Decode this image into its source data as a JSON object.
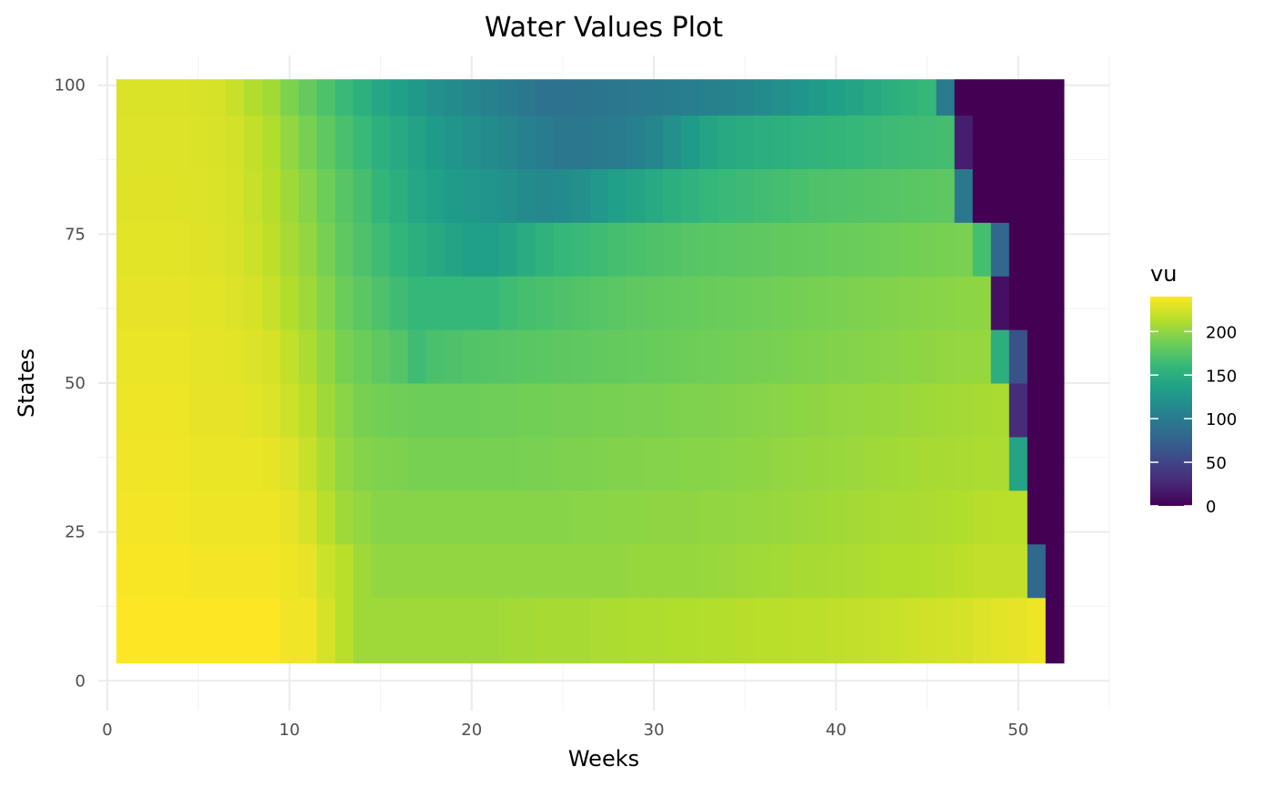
{
  "chart_data": {
    "type": "heatmap",
    "title": "Water Values Plot",
    "xlabel": "Weeks",
    "ylabel": "States",
    "xlim": [
      -0.5,
      55
    ],
    "ylim": [
      -5,
      105
    ],
    "x_range": [
      1,
      52
    ],
    "x_ticks": [
      0,
      10,
      20,
      30,
      40,
      50
    ],
    "x_tick_labels": [
      "0",
      "10",
      "20",
      "30",
      "40",
      "50"
    ],
    "y_ticks": [
      0,
      25,
      50,
      75,
      100
    ],
    "y_tick_labels": [
      "0",
      "25",
      "50",
      "75",
      "100"
    ],
    "state_bands": [
      {
        "y0": 3,
        "y1": 14
      },
      {
        "y0": 14,
        "y1": 23
      },
      {
        "y0": 23,
        "y1": 32
      },
      {
        "y0": 32,
        "y1": 41
      },
      {
        "y0": 41,
        "y1": 50
      },
      {
        "y0": 50,
        "y1": 59
      },
      {
        "y0": 59,
        "y1": 68
      },
      {
        "y0": 68,
        "y1": 77
      },
      {
        "y0": 77,
        "y1": 86
      },
      {
        "y0": 86,
        "y1": 95
      },
      {
        "y0": 95,
        "y1": 101
      }
    ],
    "values": [
      [
        240,
        240,
        240,
        240,
        240,
        240,
        240,
        240,
        240,
        235,
        235,
        225,
        215,
        205,
        205,
        205,
        205,
        205,
        205,
        205,
        205,
        207,
        207,
        208,
        208,
        208,
        210,
        210,
        211,
        211,
        212,
        212,
        213,
        213,
        214,
        215,
        215,
        216,
        216,
        217,
        218,
        219,
        220,
        222,
        223,
        224,
        225,
        228,
        230,
        232,
        234,
        0
      ],
      [
        238,
        238,
        238,
        238,
        236,
        236,
        236,
        236,
        236,
        234,
        232,
        222,
        215,
        205,
        200,
        200,
        200,
        200,
        200,
        200,
        200,
        200,
        200,
        200,
        200,
        200,
        200,
        200,
        202,
        202,
        202,
        202,
        203,
        204,
        205,
        206,
        207,
        208,
        208,
        209,
        210,
        211,
        212,
        212,
        213,
        214,
        216,
        218,
        218,
        218,
        80,
        0
      ],
      [
        236,
        236,
        236,
        236,
        234,
        234,
        234,
        234,
        234,
        232,
        225,
        215,
        205,
        200,
        196,
        196,
        196,
        196,
        196,
        196,
        196,
        196,
        196,
        196,
        196,
        197,
        197,
        198,
        198,
        199,
        199,
        199,
        200,
        200,
        201,
        202,
        203,
        204,
        205,
        206,
        207,
        208,
        209,
        209,
        210,
        211,
        212,
        214,
        215,
        215,
        0,
        0
      ],
      [
        235,
        235,
        235,
        235,
        233,
        233,
        233,
        233,
        232,
        228,
        220,
        210,
        200,
        195,
        193,
        192,
        190,
        190,
        190,
        190,
        190,
        190,
        191,
        191,
        192,
        192,
        193,
        194,
        194,
        195,
        195,
        196,
        196,
        197,
        198,
        199,
        200,
        201,
        202,
        203,
        204,
        205,
        206,
        207,
        208,
        208,
        209,
        210,
        210,
        140,
        0,
        0
      ],
      [
        234,
        234,
        234,
        234,
        232,
        232,
        232,
        230,
        228,
        222,
        215,
        205,
        197,
        190,
        188,
        187,
        186,
        186,
        186,
        186,
        187,
        187,
        188,
        188,
        189,
        189,
        190,
        190,
        191,
        191,
        192,
        193,
        193,
        194,
        195,
        196,
        197,
        198,
        199,
        200,
        201,
        202,
        203,
        204,
        205,
        206,
        207,
        208,
        209,
        30,
        0,
        0
      ],
      [
        233,
        233,
        233,
        233,
        231,
        231,
        230,
        228,
        225,
        218,
        210,
        200,
        190,
        185,
        180,
        175,
        165,
        170,
        172,
        174,
        175,
        176,
        177,
        178,
        179,
        180,
        181,
        182,
        183,
        184,
        185,
        186,
        187,
        188,
        189,
        190,
        191,
        192,
        193,
        194,
        195,
        196,
        197,
        198,
        199,
        200,
        201,
        202,
        150,
        60,
        0,
        0
      ],
      [
        232,
        232,
        232,
        232,
        230,
        230,
        228,
        225,
        220,
        212,
        205,
        195,
        185,
        178,
        172,
        165,
        160,
        160,
        160,
        160,
        160,
        165,
        168,
        170,
        172,
        174,
        176,
        178,
        180,
        181,
        182,
        183,
        184,
        185,
        186,
        187,
        188,
        189,
        190,
        191,
        192,
        193,
        194,
        195,
        196,
        197,
        198,
        199,
        10,
        0,
        0,
        0
      ],
      [
        230,
        230,
        230,
        230,
        229,
        228,
        226,
        222,
        216,
        208,
        200,
        190,
        180,
        172,
        165,
        158,
        150,
        145,
        140,
        135,
        135,
        140,
        148,
        155,
        160,
        162,
        165,
        168,
        170,
        172,
        174,
        176,
        177,
        178,
        179,
        180,
        181,
        182,
        183,
        184,
        185,
        186,
        187,
        188,
        189,
        190,
        191,
        168,
        80,
        0,
        0,
        0
      ],
      [
        229,
        229,
        229,
        229,
        228,
        227,
        225,
        220,
        214,
        205,
        196,
        186,
        176,
        168,
        158,
        150,
        142,
        136,
        130,
        128,
        125,
        120,
        115,
        112,
        115,
        120,
        128,
        135,
        140,
        145,
        150,
        155,
        160,
        162,
        164,
        166,
        168,
        170,
        172,
        173,
        174,
        175,
        176,
        177,
        178,
        179,
        95,
        0,
        0,
        0,
        0,
        0
      ],
      [
        228,
        228,
        228,
        228,
        227,
        226,
        224,
        218,
        212,
        200,
        190,
        180,
        170,
        162,
        152,
        145,
        138,
        130,
        125,
        120,
        115,
        110,
        105,
        100,
        95,
        95,
        98,
        100,
        105,
        110,
        120,
        130,
        140,
        145,
        148,
        150,
        152,
        154,
        156,
        158,
        160,
        162,
        164,
        165,
        166,
        167,
        20,
        0,
        0,
        0,
        0,
        0
      ],
      [
        227,
        227,
        227,
        227,
        226,
        225,
        220,
        212,
        206,
        192,
        182,
        172,
        162,
        152,
        142,
        135,
        128,
        120,
        115,
        110,
        105,
        100,
        95,
        90,
        90,
        92,
        94,
        95,
        97,
        98,
        100,
        102,
        105,
        108,
        110,
        115,
        120,
        125,
        130,
        135,
        140,
        145,
        150,
        155,
        160,
        100,
        0,
        0,
        0,
        0,
        0,
        0
      ]
    ],
    "color_scale": {
      "name": "viridis",
      "min": 0,
      "max": 240,
      "stops": [
        "#440154",
        "#482878",
        "#3e4989",
        "#31688e",
        "#26828e",
        "#1f9e89",
        "#35b779",
        "#6ece58",
        "#b5de2b",
        "#fde725"
      ]
    },
    "legend": {
      "title": "vu",
      "position": "right",
      "ticks": [
        0,
        50,
        100,
        150,
        200
      ],
      "tick_labels": [
        "0",
        "50",
        "100",
        "150",
        "200"
      ]
    },
    "grid": true
  }
}
